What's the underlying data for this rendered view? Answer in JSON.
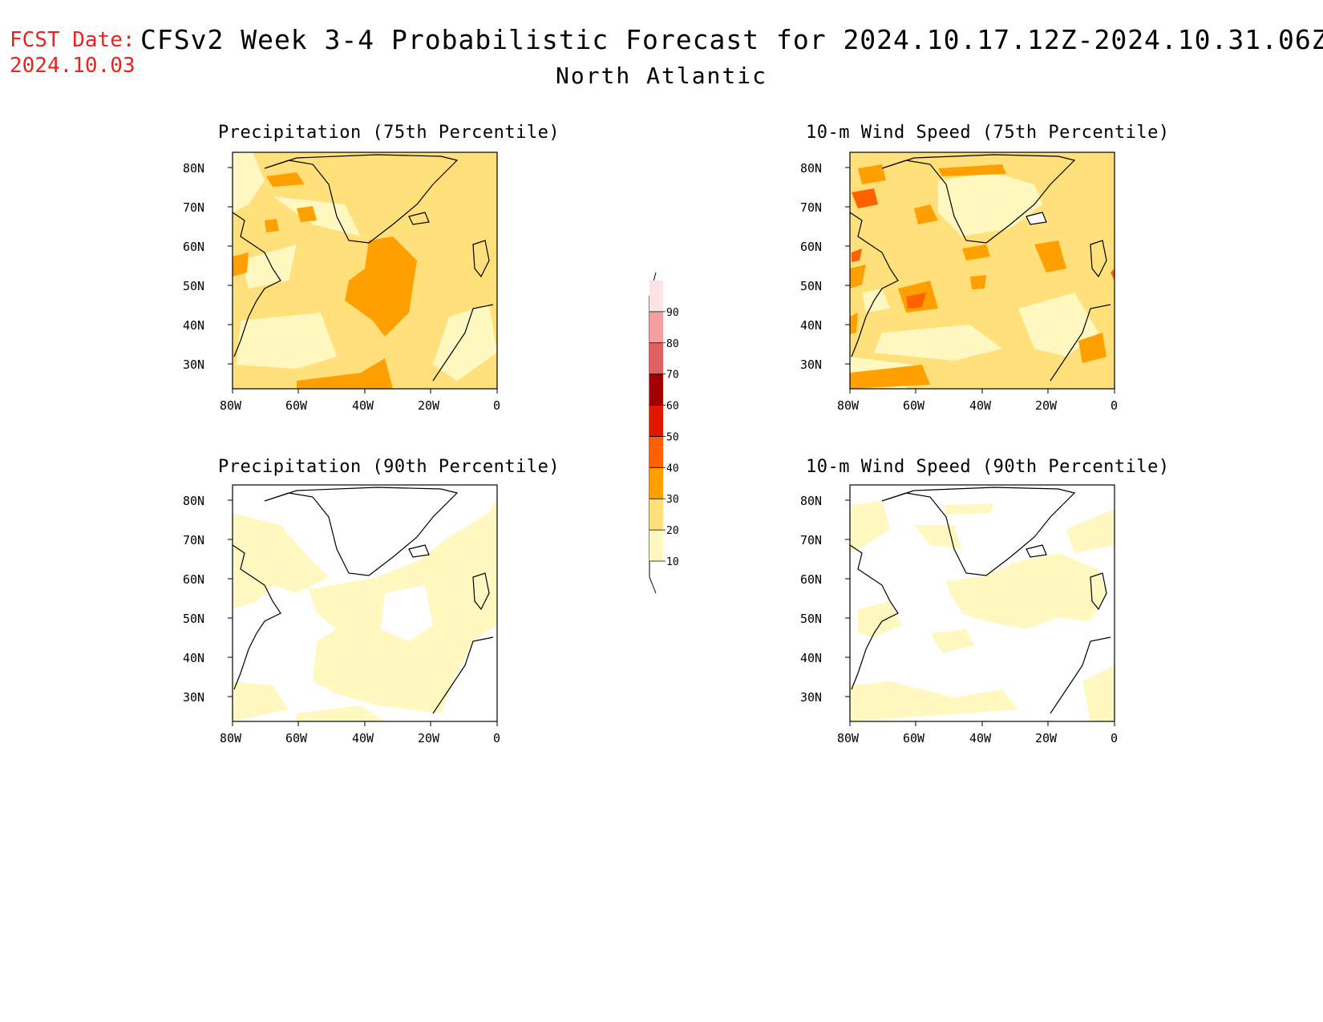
{
  "header": {
    "fcst_label": "FCST Date:",
    "fcst_date": "2024.10.03",
    "title": "CFSv2 Week 3-4 Probabilistic Forecast for 2024.10.17.12Z-2024.10.31.06Z",
    "region": "North Atlantic"
  },
  "axes": {
    "lon_ticks": [
      "80W",
      "60W",
      "40W",
      "20W",
      "0"
    ],
    "lat_ticks": [
      "80N",
      "70N",
      "60N",
      "50N",
      "40N",
      "30N"
    ]
  },
  "panels": [
    {
      "title": "Precipitation (75th Percentile)",
      "variable": "precipitation",
      "percentile": 75
    },
    {
      "title": "10-m Wind Speed (75th Percentile)",
      "variable": "wind_speed_10m",
      "percentile": 75
    },
    {
      "title": "Precipitation (90th Percentile)",
      "variable": "precipitation",
      "percentile": 90
    },
    {
      "title": "10-m Wind Speed (90th Percentile)",
      "variable": "wind_speed_10m",
      "percentile": 90
    }
  ],
  "colorbar": {
    "levels": [
      "10",
      "20",
      "30",
      "40",
      "50",
      "60",
      "70",
      "80",
      "90"
    ],
    "colors": [
      "#fff8c0",
      "#ffe07a",
      "#ffa000",
      "#ff6000",
      "#e01800",
      "#a00000",
      "#e06060",
      "#f4a0a0",
      "#fde4e4"
    ]
  },
  "colors": {
    "fcst": "#e8241c",
    "light": "#fff8c0",
    "mid": "#ffe07a",
    "orange": "#ffa000",
    "deep": "#ff6000"
  }
}
